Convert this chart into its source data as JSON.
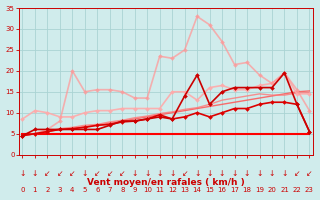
{
  "bg_color": "#d0ecec",
  "grid_color": "#aad4d4",
  "xlabel": "Vent moyen/en rafales ( km/h )",
  "xlim": [
    0,
    23
  ],
  "ylim": [
    0,
    35
  ],
  "xticks": [
    0,
    1,
    2,
    3,
    4,
    5,
    6,
    7,
    8,
    9,
    10,
    11,
    12,
    13,
    14,
    15,
    16,
    17,
    18,
    19,
    20,
    21,
    22,
    23
  ],
  "yticks": [
    0,
    5,
    10,
    15,
    20,
    25,
    30,
    35
  ],
  "lines": [
    {
      "x": [
        0,
        1,
        2,
        3,
        4,
        5,
        6,
        7,
        8,
        9,
        10,
        11,
        12,
        13,
        14,
        15,
        16,
        17,
        18,
        19,
        20,
        21,
        22,
        23
      ],
      "y": [
        5,
        5,
        5,
        5,
        5,
        5,
        5,
        5,
        5,
        5,
        5,
        5,
        5,
        5,
        5,
        5,
        5,
        5,
        5,
        5,
        5,
        5,
        5,
        5
      ],
      "color": "#ff0000",
      "lw": 1.5,
      "marker": null,
      "alpha": 1.0,
      "zorder": 3
    },
    {
      "x": [
        0,
        1,
        2,
        3,
        4,
        5,
        6,
        7,
        8,
        9,
        10,
        11,
        12,
        13,
        14,
        15,
        16,
        17,
        18,
        19,
        20,
        21,
        22,
        23
      ],
      "y": [
        4.5,
        5.0,
        5.5,
        6.0,
        6.2,
        6.7,
        7.0,
        7.5,
        8.0,
        8.5,
        9.0,
        9.5,
        10.0,
        10.5,
        11.0,
        11.5,
        12.0,
        12.5,
        13.0,
        13.5,
        14.0,
        14.5,
        15.0,
        15.2
      ],
      "color": "#ff5555",
      "lw": 1.0,
      "marker": null,
      "alpha": 0.85,
      "zorder": 2
    },
    {
      "x": [
        0,
        1,
        2,
        3,
        4,
        5,
        6,
        7,
        8,
        9,
        10,
        11,
        12,
        13,
        14,
        15,
        16,
        17,
        18,
        19,
        20,
        21,
        22,
        23
      ],
      "y": [
        4.5,
        5.0,
        5.5,
        6.2,
        6.5,
        7.0,
        7.2,
        7.8,
        8.2,
        8.8,
        9.2,
        9.8,
        10.2,
        10.8,
        11.2,
        12.0,
        13.0,
        13.5,
        14.0,
        14.5,
        14.2,
        14.2,
        14.7,
        14.8
      ],
      "color": "#ff7777",
      "lw": 1.0,
      "marker": null,
      "alpha": 0.8,
      "zorder": 2
    },
    {
      "x": [
        0,
        1,
        2,
        3,
        4,
        5,
        6,
        7,
        8,
        9,
        10,
        11,
        12,
        13,
        14,
        15,
        16,
        17,
        18,
        19,
        20,
        21,
        22,
        23
      ],
      "y": [
        4.5,
        5.0,
        5.5,
        6.0,
        6.2,
        6.5,
        7.0,
        7.2,
        7.8,
        8.0,
        8.5,
        9.5,
        8.5,
        9.0,
        10.0,
        9.0,
        10.0,
        11.0,
        11.0,
        12.0,
        12.5,
        12.5,
        12.0,
        5.5
      ],
      "color": "#dd0000",
      "lw": 1.2,
      "marker": "D",
      "markersize": 2.0,
      "alpha": 1.0,
      "zorder": 4
    },
    {
      "x": [
        0,
        1,
        2,
        3,
        4,
        5,
        6,
        7,
        8,
        9,
        10,
        11,
        12,
        13,
        14,
        15,
        16,
        17,
        18,
        19,
        20,
        21,
        22,
        23
      ],
      "y": [
        4.5,
        6.0,
        6.0,
        6.0,
        6.0,
        6.0,
        6.0,
        7.0,
        8.0,
        8.0,
        8.5,
        9.0,
        8.5,
        14.0,
        19.0,
        12.0,
        15.0,
        16.0,
        16.0,
        16.0,
        16.0,
        19.5,
        12.0,
        5.5
      ],
      "color": "#cc0000",
      "lw": 1.2,
      "marker": "D",
      "markersize": 2.0,
      "alpha": 1.0,
      "zorder": 4
    },
    {
      "x": [
        0,
        1,
        2,
        3,
        4,
        5,
        6,
        7,
        8,
        9,
        10,
        11,
        12,
        13,
        14,
        15,
        16,
        17,
        18,
        19,
        20,
        21,
        22,
        23
      ],
      "y": [
        8.5,
        10.5,
        10.0,
        9.0,
        9.0,
        10.0,
        10.5,
        10.5,
        11.0,
        11.0,
        11.0,
        11.0,
        15.0,
        15.0,
        13.0,
        16.0,
        16.5,
        15.5,
        15.5,
        16.5,
        17.0,
        19.5,
        14.5,
        14.5
      ],
      "color": "#ffaaaa",
      "lw": 1.2,
      "marker": "D",
      "markersize": 2.0,
      "alpha": 0.9,
      "zorder": 3
    },
    {
      "x": [
        0,
        1,
        2,
        3,
        4,
        5,
        6,
        7,
        8,
        9,
        10,
        11,
        12,
        13,
        14,
        15,
        16,
        17,
        18,
        19,
        20,
        21,
        22,
        23
      ],
      "y": [
        4.5,
        5.0,
        6.0,
        8.0,
        20.0,
        15.0,
        15.5,
        15.5,
        15.0,
        13.5,
        13.5,
        23.5,
        23.0,
        25.0,
        33.0,
        31.0,
        27.0,
        21.5,
        22.0,
        19.0,
        17.0,
        19.5,
        15.5,
        10.5
      ],
      "color": "#ff9999",
      "lw": 1.2,
      "marker": "D",
      "markersize": 2.0,
      "alpha": 0.75,
      "zorder": 3
    }
  ],
  "arrow_chars": [
    "↓",
    "↓",
    "↙",
    "↙",
    "↙",
    "↓",
    "↙",
    "↙",
    "↙",
    "↓",
    "↓",
    "↓",
    "↓",
    "↙",
    "↓",
    "↓",
    "↓",
    "↓",
    "↓",
    "↓",
    "↓",
    "↓",
    "↙",
    "↙"
  ],
  "tick_color": "#cc0000",
  "label_color": "#cc0000",
  "tick_fontsize": 5.0,
  "arrow_fontsize": 5.5,
  "xlabel_fontsize": 6.5
}
